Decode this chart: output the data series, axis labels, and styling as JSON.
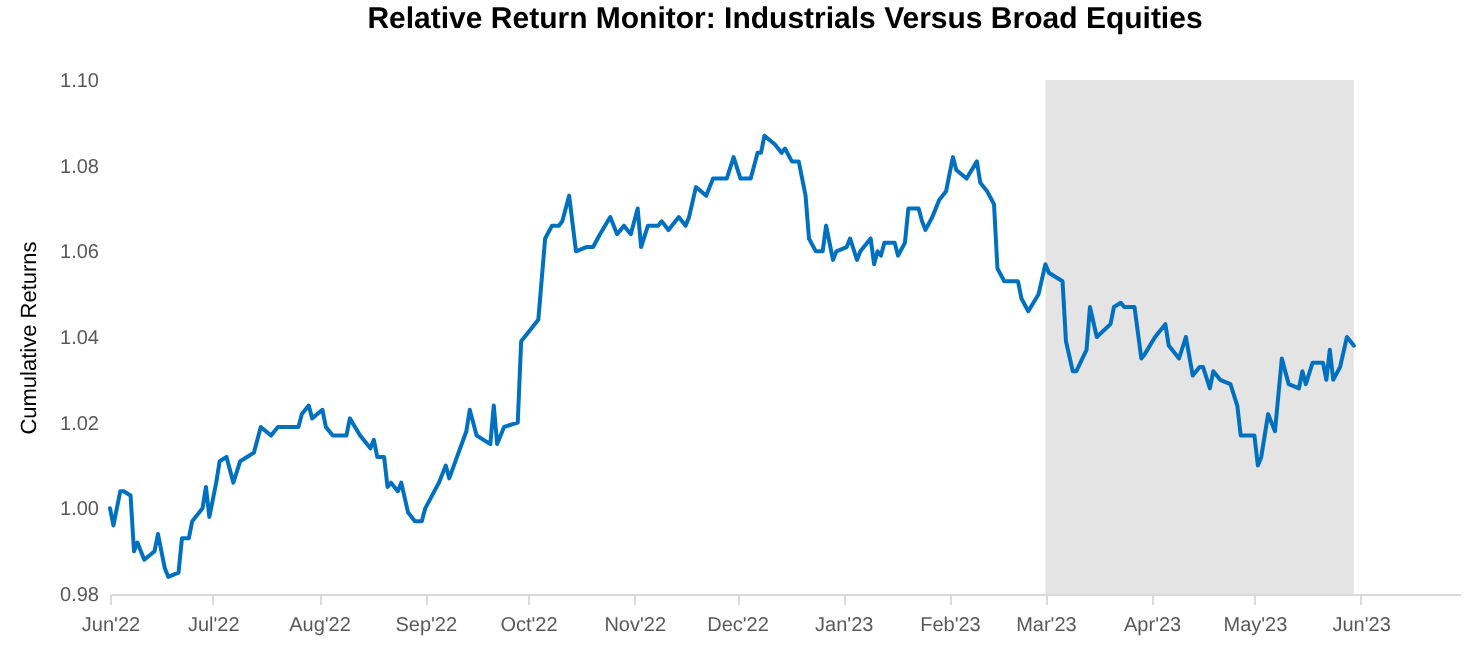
{
  "chart_data": {
    "type": "line",
    "title": "Relative Return Monitor: Industrials Versus Broad Equities",
    "ylabel": "Cumulative Returns",
    "x": [
      "2022-06-01",
      "2022-06-02",
      "2022-06-04",
      "2022-06-05",
      "2022-06-07",
      "2022-06-08",
      "2022-06-09",
      "2022-06-11",
      "2022-06-14",
      "2022-06-15",
      "2022-06-17",
      "2022-06-18",
      "2022-06-21",
      "2022-06-22",
      "2022-06-24",
      "2022-06-25",
      "2022-06-28",
      "2022-06-29",
      "2022-06-30",
      "2022-07-02",
      "2022-07-03",
      "2022-07-05",
      "2022-07-07",
      "2022-07-09",
      "2022-07-11",
      "2022-07-13",
      "2022-07-15",
      "2022-07-18",
      "2022-07-20",
      "2022-07-22",
      "2022-07-26",
      "2022-07-27",
      "2022-07-29",
      "2022-07-30",
      "2022-08-02",
      "2022-08-03",
      "2022-08-05",
      "2022-08-09",
      "2022-08-10",
      "2022-08-13",
      "2022-08-16",
      "2022-08-17",
      "2022-08-18",
      "2022-08-20",
      "2022-08-21",
      "2022-08-22",
      "2022-08-24",
      "2022-08-25",
      "2022-08-27",
      "2022-08-29",
      "2022-08-31",
      "2022-09-01",
      "2022-09-05",
      "2022-09-07",
      "2022-09-08",
      "2022-09-13",
      "2022-09-14",
      "2022-09-16",
      "2022-09-20",
      "2022-09-21",
      "2022-09-22",
      "2022-09-24",
      "2022-09-28",
      "2022-09-29",
      "2022-09-30",
      "2022-10-04",
      "2022-10-06",
      "2022-10-08",
      "2022-10-10",
      "2022-10-11",
      "2022-10-13",
      "2022-10-15",
      "2022-10-18",
      "2022-10-20",
      "2022-10-22",
      "2022-10-25",
      "2022-10-27",
      "2022-10-29",
      "2022-10-31",
      "2022-11-02",
      "2022-11-03",
      "2022-11-05",
      "2022-11-08",
      "2022-11-09",
      "2022-11-11",
      "2022-11-14",
      "2022-11-16",
      "2022-11-17",
      "2022-11-19",
      "2022-11-22",
      "2022-11-24",
      "2022-11-28",
      "2022-11-30",
      "2022-12-02",
      "2022-12-05",
      "2022-12-07",
      "2022-12-08",
      "2022-12-09",
      "2022-12-12",
      "2022-12-14",
      "2022-12-15",
      "2022-12-17",
      "2022-12-19",
      "2022-12-21",
      "2022-12-22",
      "2022-12-24",
      "2022-12-26",
      "2022-12-27",
      "2022-12-29",
      "2022-12-30",
      "2023-01-02",
      "2023-01-03",
      "2023-01-05",
      "2023-01-06",
      "2023-01-09",
      "2023-01-10",
      "2023-01-11",
      "2023-01-12",
      "2023-01-13",
      "2023-01-16",
      "2023-01-17",
      "2023-01-19",
      "2023-01-20",
      "2023-01-23",
      "2023-01-24",
      "2023-01-25",
      "2023-01-27",
      "2023-01-29",
      "2023-01-31",
      "2023-02-02",
      "2023-02-03",
      "2023-02-06",
      "2023-02-09",
      "2023-02-10",
      "2023-02-12",
      "2023-02-14",
      "2023-02-15",
      "2023-02-17",
      "2023-02-21",
      "2023-02-22",
      "2023-02-24",
      "2023-02-27",
      "2023-03-01",
      "2023-03-02",
      "2023-03-06",
      "2023-03-07",
      "2023-03-09",
      "2023-03-10",
      "2023-03-13",
      "2023-03-14",
      "2023-03-16",
      "2023-03-20",
      "2023-03-21",
      "2023-03-23",
      "2023-03-24",
      "2023-03-27",
      "2023-03-29",
      "2023-03-30",
      "2023-04-02",
      "2023-04-05",
      "2023-04-06",
      "2023-04-09",
      "2023-04-11",
      "2023-04-13",
      "2023-04-15",
      "2023-04-16",
      "2023-04-18",
      "2023-04-19",
      "2023-04-21",
      "2023-04-24",
      "2023-04-26",
      "2023-04-27",
      "2023-05-01",
      "2023-05-02",
      "2023-05-03",
      "2023-05-05",
      "2023-05-07",
      "2023-05-09",
      "2023-05-11",
      "2023-05-14",
      "2023-05-15",
      "2023-05-16",
      "2023-05-18",
      "2023-05-21",
      "2023-05-22",
      "2023-05-23",
      "2023-05-24",
      "2023-05-26",
      "2023-05-28",
      "2023-05-30"
    ],
    "series": [
      {
        "color": "#0070c0",
        "values": [
          1.0,
          0.996,
          1.004,
          1.004,
          1.003,
          0.99,
          0.992,
          0.988,
          0.99,
          0.994,
          0.986,
          0.984,
          0.985,
          0.993,
          0.993,
          0.997,
          1.0,
          1.005,
          0.998,
          1.006,
          1.011,
          1.012,
          1.006,
          1.011,
          1.012,
          1.013,
          1.019,
          1.017,
          1.019,
          1.019,
          1.019,
          1.022,
          1.024,
          1.021,
          1.023,
          1.019,
          1.017,
          1.017,
          1.021,
          1.017,
          1.014,
          1.016,
          1.012,
          1.012,
          1.005,
          1.006,
          1.004,
          1.006,
          0.999,
          0.997,
          0.997,
          1.0,
          1.006,
          1.01,
          1.007,
          1.018,
          1.023,
          1.017,
          1.015,
          1.024,
          1.015,
          1.019,
          1.02,
          1.039,
          1.04,
          1.044,
          1.063,
          1.066,
          1.066,
          1.067,
          1.073,
          1.06,
          1.061,
          1.061,
          1.064,
          1.068,
          1.064,
          1.066,
          1.064,
          1.07,
          1.061,
          1.066,
          1.066,
          1.067,
          1.065,
          1.068,
          1.066,
          1.068,
          1.075,
          1.073,
          1.077,
          1.077,
          1.082,
          1.077,
          1.077,
          1.083,
          1.083,
          1.087,
          1.085,
          1.083,
          1.084,
          1.081,
          1.081,
          1.073,
          1.063,
          1.06,
          1.06,
          1.066,
          1.058,
          1.06,
          1.061,
          1.063,
          1.058,
          1.06,
          1.063,
          1.057,
          1.06,
          1.059,
          1.062,
          1.062,
          1.059,
          1.062,
          1.07,
          1.07,
          1.067,
          1.065,
          1.068,
          1.072,
          1.074,
          1.082,
          1.079,
          1.077,
          1.081,
          1.076,
          1.074,
          1.071,
          1.056,
          1.053,
          1.053,
          1.049,
          1.046,
          1.05,
          1.057,
          1.055,
          1.053,
          1.039,
          1.032,
          1.032,
          1.037,
          1.047,
          1.04,
          1.043,
          1.047,
          1.048,
          1.047,
          1.047,
          1.035,
          1.036,
          1.04,
          1.043,
          1.038,
          1.035,
          1.04,
          1.031,
          1.033,
          1.033,
          1.028,
          1.032,
          1.03,
          1.029,
          1.024,
          1.017,
          1.017,
          1.01,
          1.012,
          1.022,
          1.018,
          1.035,
          1.029,
          1.028,
          1.032,
          1.029,
          1.034,
          1.034,
          1.03,
          1.037,
          1.03,
          1.033,
          1.04,
          1.038
        ]
      }
    ],
    "xlim": [
      "2022-06-01",
      "2023-06-30"
    ],
    "xticks": [
      {
        "value": "2022-06-01",
        "label": "Jun'22"
      },
      {
        "value": "2022-07-01",
        "label": "Jul'22"
      },
      {
        "value": "2022-08-01",
        "label": "Aug'22"
      },
      {
        "value": "2022-09-01",
        "label": "Sep'22"
      },
      {
        "value": "2022-10-01",
        "label": "Oct'22"
      },
      {
        "value": "2022-11-01",
        "label": "Nov'22"
      },
      {
        "value": "2022-12-01",
        "label": "Dec'22"
      },
      {
        "value": "2023-01-01",
        "label": "Jan'23"
      },
      {
        "value": "2023-02-01",
        "label": "Feb'23"
      },
      {
        "value": "2023-03-01",
        "label": "Mar'23"
      },
      {
        "value": "2023-04-01",
        "label": "Apr'23"
      },
      {
        "value": "2023-05-01",
        "label": "May'23"
      },
      {
        "value": "2023-06-01",
        "label": "Jun'23"
      }
    ],
    "ylim": [
      0.98,
      1.1
    ],
    "yticks": [
      0.98,
      {
        "value": 1.0,
        "label": "1.00"
      },
      1.02,
      1.04,
      1.06,
      1.08,
      {
        "value": 1.1,
        "label": "1.10"
      }
    ],
    "bands": [
      {
        "axis": "x",
        "from": "2023-03-01",
        "to": "2023-05-30",
        "color": "#e4e4e4"
      }
    ]
  }
}
